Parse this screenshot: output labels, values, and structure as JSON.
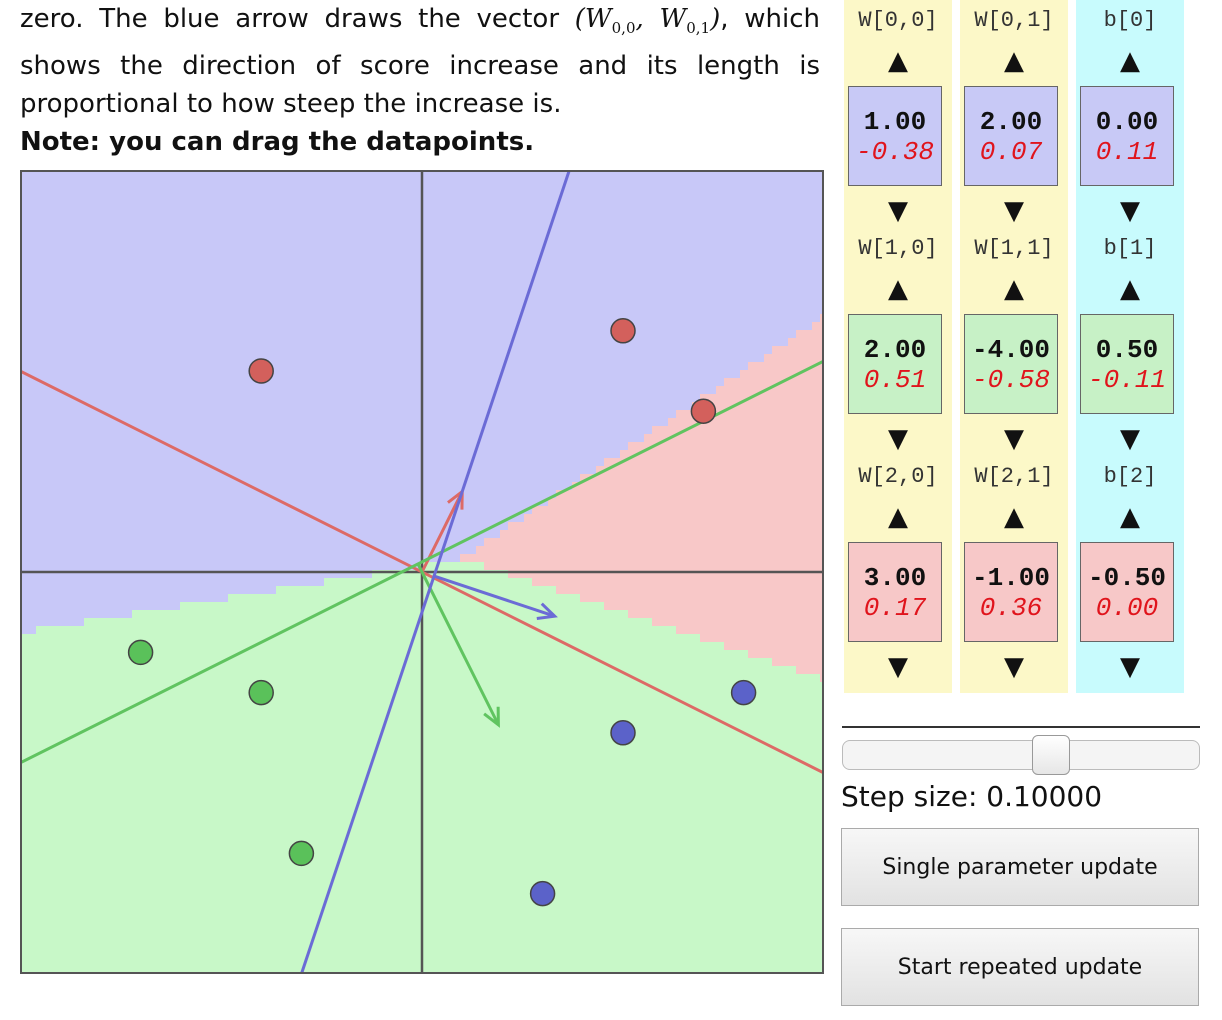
{
  "intro": {
    "line1_prefix": "zero. The blue arrow draws the vector",
    "vec_open": "(W",
    "sub_a": "0,0",
    "vec_mid": ", W",
    "sub_b": "0,1",
    "vec_close": ")",
    "line1_suffix": ", which shows the direction of score increase and its length is proportional to how steep the increase is.",
    "note": "Note: you can drag the datapoints."
  },
  "params": {
    "up_arrow": "▲",
    "down_arrow": "▼",
    "rows": [
      {
        "labels": [
          "W[0,0]",
          "W[0,1]",
          "b[0]"
        ],
        "values": [
          "1.00",
          "2.00",
          "0.00"
        ],
        "grads": [
          "-0.38",
          "0.07",
          "0.11"
        ]
      },
      {
        "labels": [
          "W[1,0]",
          "W[1,1]",
          "b[1]"
        ],
        "values": [
          "2.00",
          "-4.00",
          "0.50"
        ],
        "grads": [
          "0.51",
          "-0.58",
          "-0.11"
        ]
      },
      {
        "labels": [
          "W[2,0]",
          "W[2,1]",
          "b[2]"
        ],
        "values": [
          "3.00",
          "-1.00",
          "-0.50"
        ],
        "grads": [
          "0.17",
          "0.36",
          "0.00"
        ]
      }
    ]
  },
  "controls": {
    "step_label": "Step size: 0.10000",
    "step_slider_value": 0.1,
    "single_update": "Single parameter update",
    "repeated_update": "Start repeated update"
  },
  "chart_data": {
    "type": "scatter",
    "title": "",
    "xlim": [
      -5,
      5
    ],
    "ylim": [
      -5,
      5
    ],
    "axes_at_origin": true,
    "points": [
      {
        "x": 2.5,
        "y": 3.0,
        "class": 0
      },
      {
        "x": -2.0,
        "y": 2.5,
        "class": 0
      },
      {
        "x": 3.5,
        "y": 2.0,
        "class": 0
      },
      {
        "x": -3.5,
        "y": -1.0,
        "class": 1
      },
      {
        "x": -2.0,
        "y": -1.5,
        "class": 1
      },
      {
        "x": -1.5,
        "y": -3.5,
        "class": 1
      },
      {
        "x": 4.0,
        "y": -1.5,
        "class": 2
      },
      {
        "x": 2.5,
        "y": -2.0,
        "class": 2
      },
      {
        "x": 1.5,
        "y": -4.0,
        "class": 2
      }
    ],
    "class_colors": {
      "point_0": "#d3605c",
      "point_1": "#5ac15a",
      "point_2": "#5b62c9",
      "region_0": "#c8c8f8",
      "region_1": "#c8f8c8",
      "region_2": "#f8c8c8",
      "line_0": "#dd6a66",
      "line_1": "#60c460",
      "line_2": "#6b6bd6"
    }
  }
}
